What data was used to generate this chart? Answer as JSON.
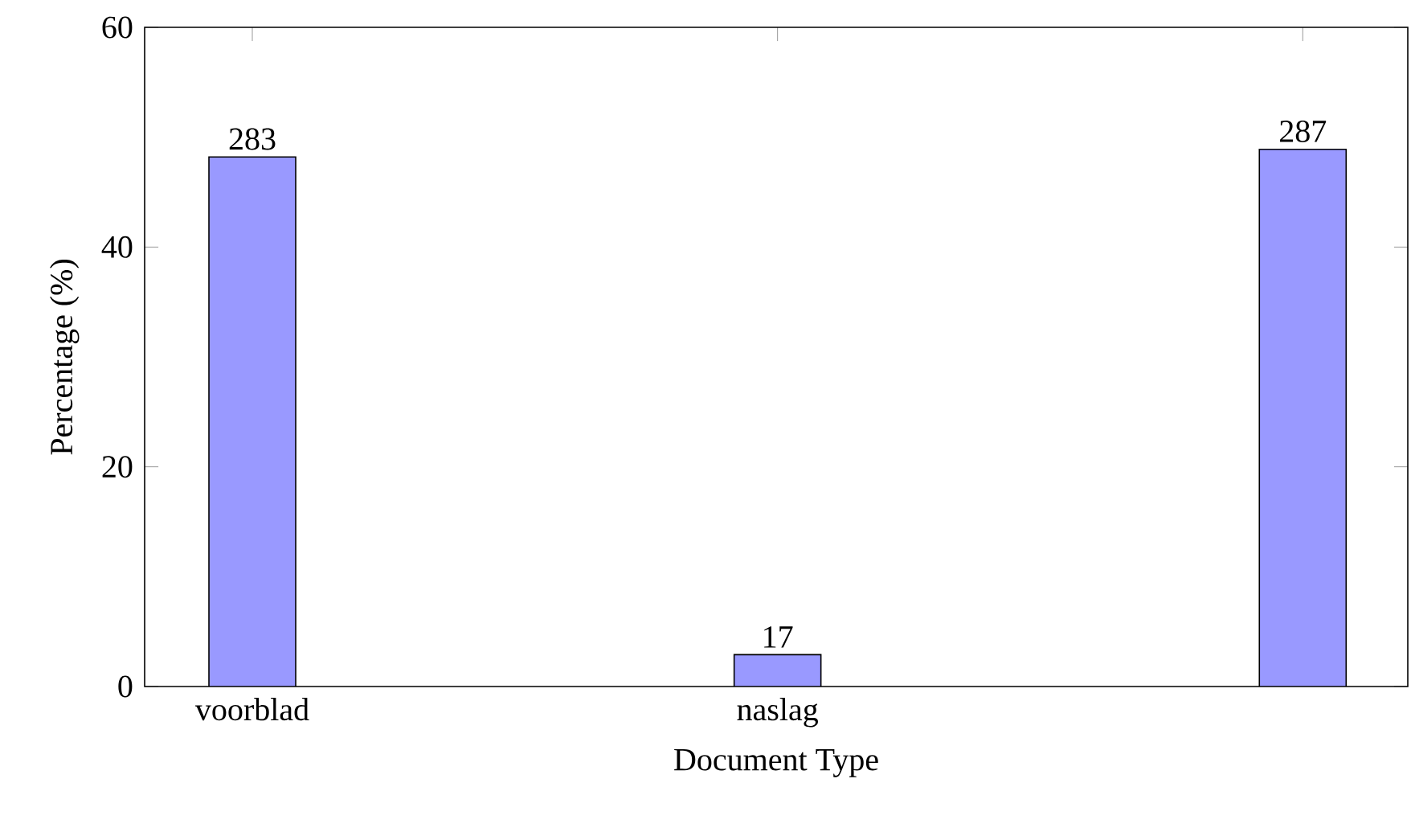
{
  "chart_data": {
    "type": "bar",
    "xlabel": "Document Type",
    "ylabel": "Percentage (%)",
    "categories": [
      "voorblad",
      "naslag",
      null
    ],
    "values": [
      48.2,
      2.9,
      48.9
    ],
    "annotations": [
      {
        "text": "283",
        "x": "voorblad",
        "y": 48.2
      },
      {
        "text": "17",
        "x": "naslag",
        "y": 2.9
      },
      {
        "text": "287",
        "y": 48.9
      }
    ],
    "color": "#9999ff",
    "ylim": [
      0,
      60
    ],
    "yticks": [
      0,
      20,
      40,
      60
    ],
    "grid": false
  }
}
